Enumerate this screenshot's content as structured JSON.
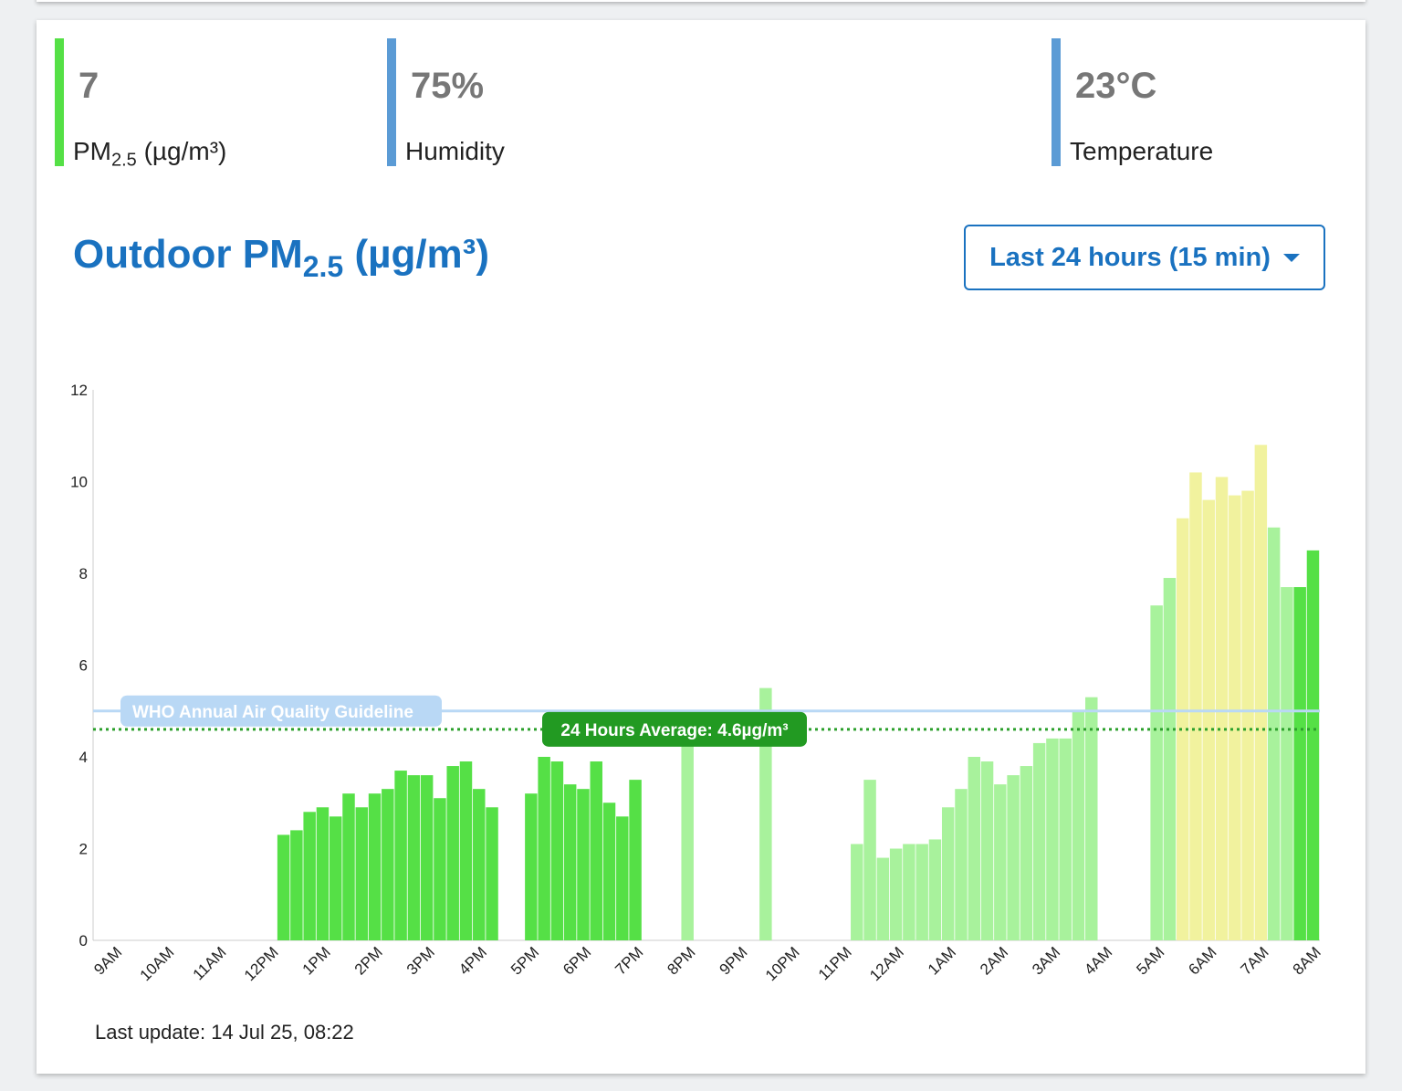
{
  "stats": {
    "pm": {
      "value": "7",
      "label": "PM",
      "sub": "2.5",
      "unit": " (µg/m³)"
    },
    "humidity": {
      "value": "75%",
      "label": "Humidity"
    },
    "temperature": {
      "value": "23°C",
      "label": "Temperature"
    }
  },
  "title": {
    "main": "Outdoor PM",
    "sub": "2.5",
    "unit": " (µg/m³)"
  },
  "range_selector": {
    "label": "Last 24 hours (15 min)"
  },
  "last_update": "Last update: 14 Jul 25, 08:22",
  "colors": {
    "green": "#55e046",
    "light_green": "#a8f29c",
    "yellow": "#f1f29e",
    "who_line": "#b9d8f5",
    "avg_line": "#2ca02c",
    "avg_label_bg": "#229a22",
    "title_blue": "#1a72c0"
  },
  "chart_data": {
    "type": "bar",
    "x_ticks": [
      "9AM",
      "10AM",
      "11AM",
      "12PM",
      "1PM",
      "2PM",
      "3PM",
      "4PM",
      "5PM",
      "6PM",
      "7PM",
      "8PM",
      "9PM",
      "10PM",
      "11PM",
      "12AM",
      "1AM",
      "2AM",
      "3AM",
      "4AM",
      "5AM",
      "6AM",
      "7AM",
      "8AM"
    ],
    "y_ticks": [
      "0",
      "2",
      "4",
      "6",
      "8",
      "10",
      "12"
    ],
    "ylim": [
      0,
      12
    ],
    "interval": "15 min",
    "bars": [
      {
        "t": 12.0,
        "v": 2.3,
        "c": "green"
      },
      {
        "t": 12.25,
        "v": 2.4,
        "c": "green"
      },
      {
        "t": 12.5,
        "v": 2.8,
        "c": "green"
      },
      {
        "t": 12.75,
        "v": 2.9,
        "c": "green"
      },
      {
        "t": 13.0,
        "v": 2.7,
        "c": "green"
      },
      {
        "t": 13.25,
        "v": 3.2,
        "c": "green"
      },
      {
        "t": 13.5,
        "v": 2.9,
        "c": "green"
      },
      {
        "t": 13.75,
        "v": 3.2,
        "c": "green"
      },
      {
        "t": 14.0,
        "v": 3.3,
        "c": "green"
      },
      {
        "t": 14.25,
        "v": 3.7,
        "c": "green"
      },
      {
        "t": 14.5,
        "v": 3.6,
        "c": "green"
      },
      {
        "t": 14.75,
        "v": 3.6,
        "c": "green"
      },
      {
        "t": 15.0,
        "v": 3.1,
        "c": "green"
      },
      {
        "t": 15.25,
        "v": 3.8,
        "c": "green"
      },
      {
        "t": 15.5,
        "v": 3.9,
        "c": "green"
      },
      {
        "t": 15.75,
        "v": 3.3,
        "c": "green"
      },
      {
        "t": 16.0,
        "v": 2.9,
        "c": "green"
      },
      {
        "t": 16.75,
        "v": 3.2,
        "c": "green"
      },
      {
        "t": 17.0,
        "v": 4.0,
        "c": "green"
      },
      {
        "t": 17.25,
        "v": 3.9,
        "c": "green"
      },
      {
        "t": 17.5,
        "v": 3.4,
        "c": "green"
      },
      {
        "t": 17.75,
        "v": 3.3,
        "c": "green"
      },
      {
        "t": 18.0,
        "v": 3.9,
        "c": "green"
      },
      {
        "t": 18.25,
        "v": 3.0,
        "c": "green"
      },
      {
        "t": 18.5,
        "v": 2.7,
        "c": "green"
      },
      {
        "t": 18.75,
        "v": 3.5,
        "c": "green"
      },
      {
        "t": 19.75,
        "v": 4.3,
        "c": "light_green"
      },
      {
        "t": 21.25,
        "v": 5.5,
        "c": "light_green"
      },
      {
        "t": 23.0,
        "v": 2.1,
        "c": "light_green"
      },
      {
        "t": 23.25,
        "v": 3.5,
        "c": "light_green"
      },
      {
        "t": 23.5,
        "v": 1.8,
        "c": "light_green"
      },
      {
        "t": 23.75,
        "v": 2.0,
        "c": "light_green"
      },
      {
        "t": 24.0,
        "v": 2.1,
        "c": "light_green"
      },
      {
        "t": 24.25,
        "v": 2.1,
        "c": "light_green"
      },
      {
        "t": 24.5,
        "v": 2.2,
        "c": "light_green"
      },
      {
        "t": 24.75,
        "v": 2.9,
        "c": "light_green"
      },
      {
        "t": 25.0,
        "v": 3.3,
        "c": "light_green"
      },
      {
        "t": 25.25,
        "v": 4.0,
        "c": "light_green"
      },
      {
        "t": 25.5,
        "v": 3.9,
        "c": "light_green"
      },
      {
        "t": 25.75,
        "v": 3.4,
        "c": "light_green"
      },
      {
        "t": 26.0,
        "v": 3.6,
        "c": "light_green"
      },
      {
        "t": 26.25,
        "v": 3.8,
        "c": "light_green"
      },
      {
        "t": 26.5,
        "v": 4.3,
        "c": "light_green"
      },
      {
        "t": 26.75,
        "v": 4.4,
        "c": "light_green"
      },
      {
        "t": 27.0,
        "v": 4.4,
        "c": "light_green"
      },
      {
        "t": 27.25,
        "v": 5.0,
        "c": "light_green"
      },
      {
        "t": 27.5,
        "v": 5.3,
        "c": "light_green"
      },
      {
        "t": 28.75,
        "v": 7.3,
        "c": "light_green"
      },
      {
        "t": 29.0,
        "v": 7.9,
        "c": "light_green"
      },
      {
        "t": 29.25,
        "v": 9.2,
        "c": "yellow"
      },
      {
        "t": 29.5,
        "v": 10.2,
        "c": "yellow"
      },
      {
        "t": 29.75,
        "v": 9.6,
        "c": "yellow"
      },
      {
        "t": 30.0,
        "v": 10.1,
        "c": "yellow"
      },
      {
        "t": 30.25,
        "v": 9.7,
        "c": "yellow"
      },
      {
        "t": 30.5,
        "v": 9.8,
        "c": "yellow"
      },
      {
        "t": 30.75,
        "v": 10.8,
        "c": "yellow"
      },
      {
        "t": 31.0,
        "v": 9.0,
        "c": "light_green"
      },
      {
        "t": 31.25,
        "v": 7.7,
        "c": "light_green"
      },
      {
        "t": 31.5,
        "v": 7.7,
        "c": "green"
      },
      {
        "t": 31.75,
        "v": 8.5,
        "c": "green"
      }
    ],
    "reference_lines": [
      {
        "name": "WHO Annual Air Quality Guideline",
        "value": 5.0,
        "style": "solid"
      },
      {
        "name": "24 Hours Average: 4.6µg/m³",
        "value": 4.6,
        "style": "dotted"
      }
    ]
  }
}
